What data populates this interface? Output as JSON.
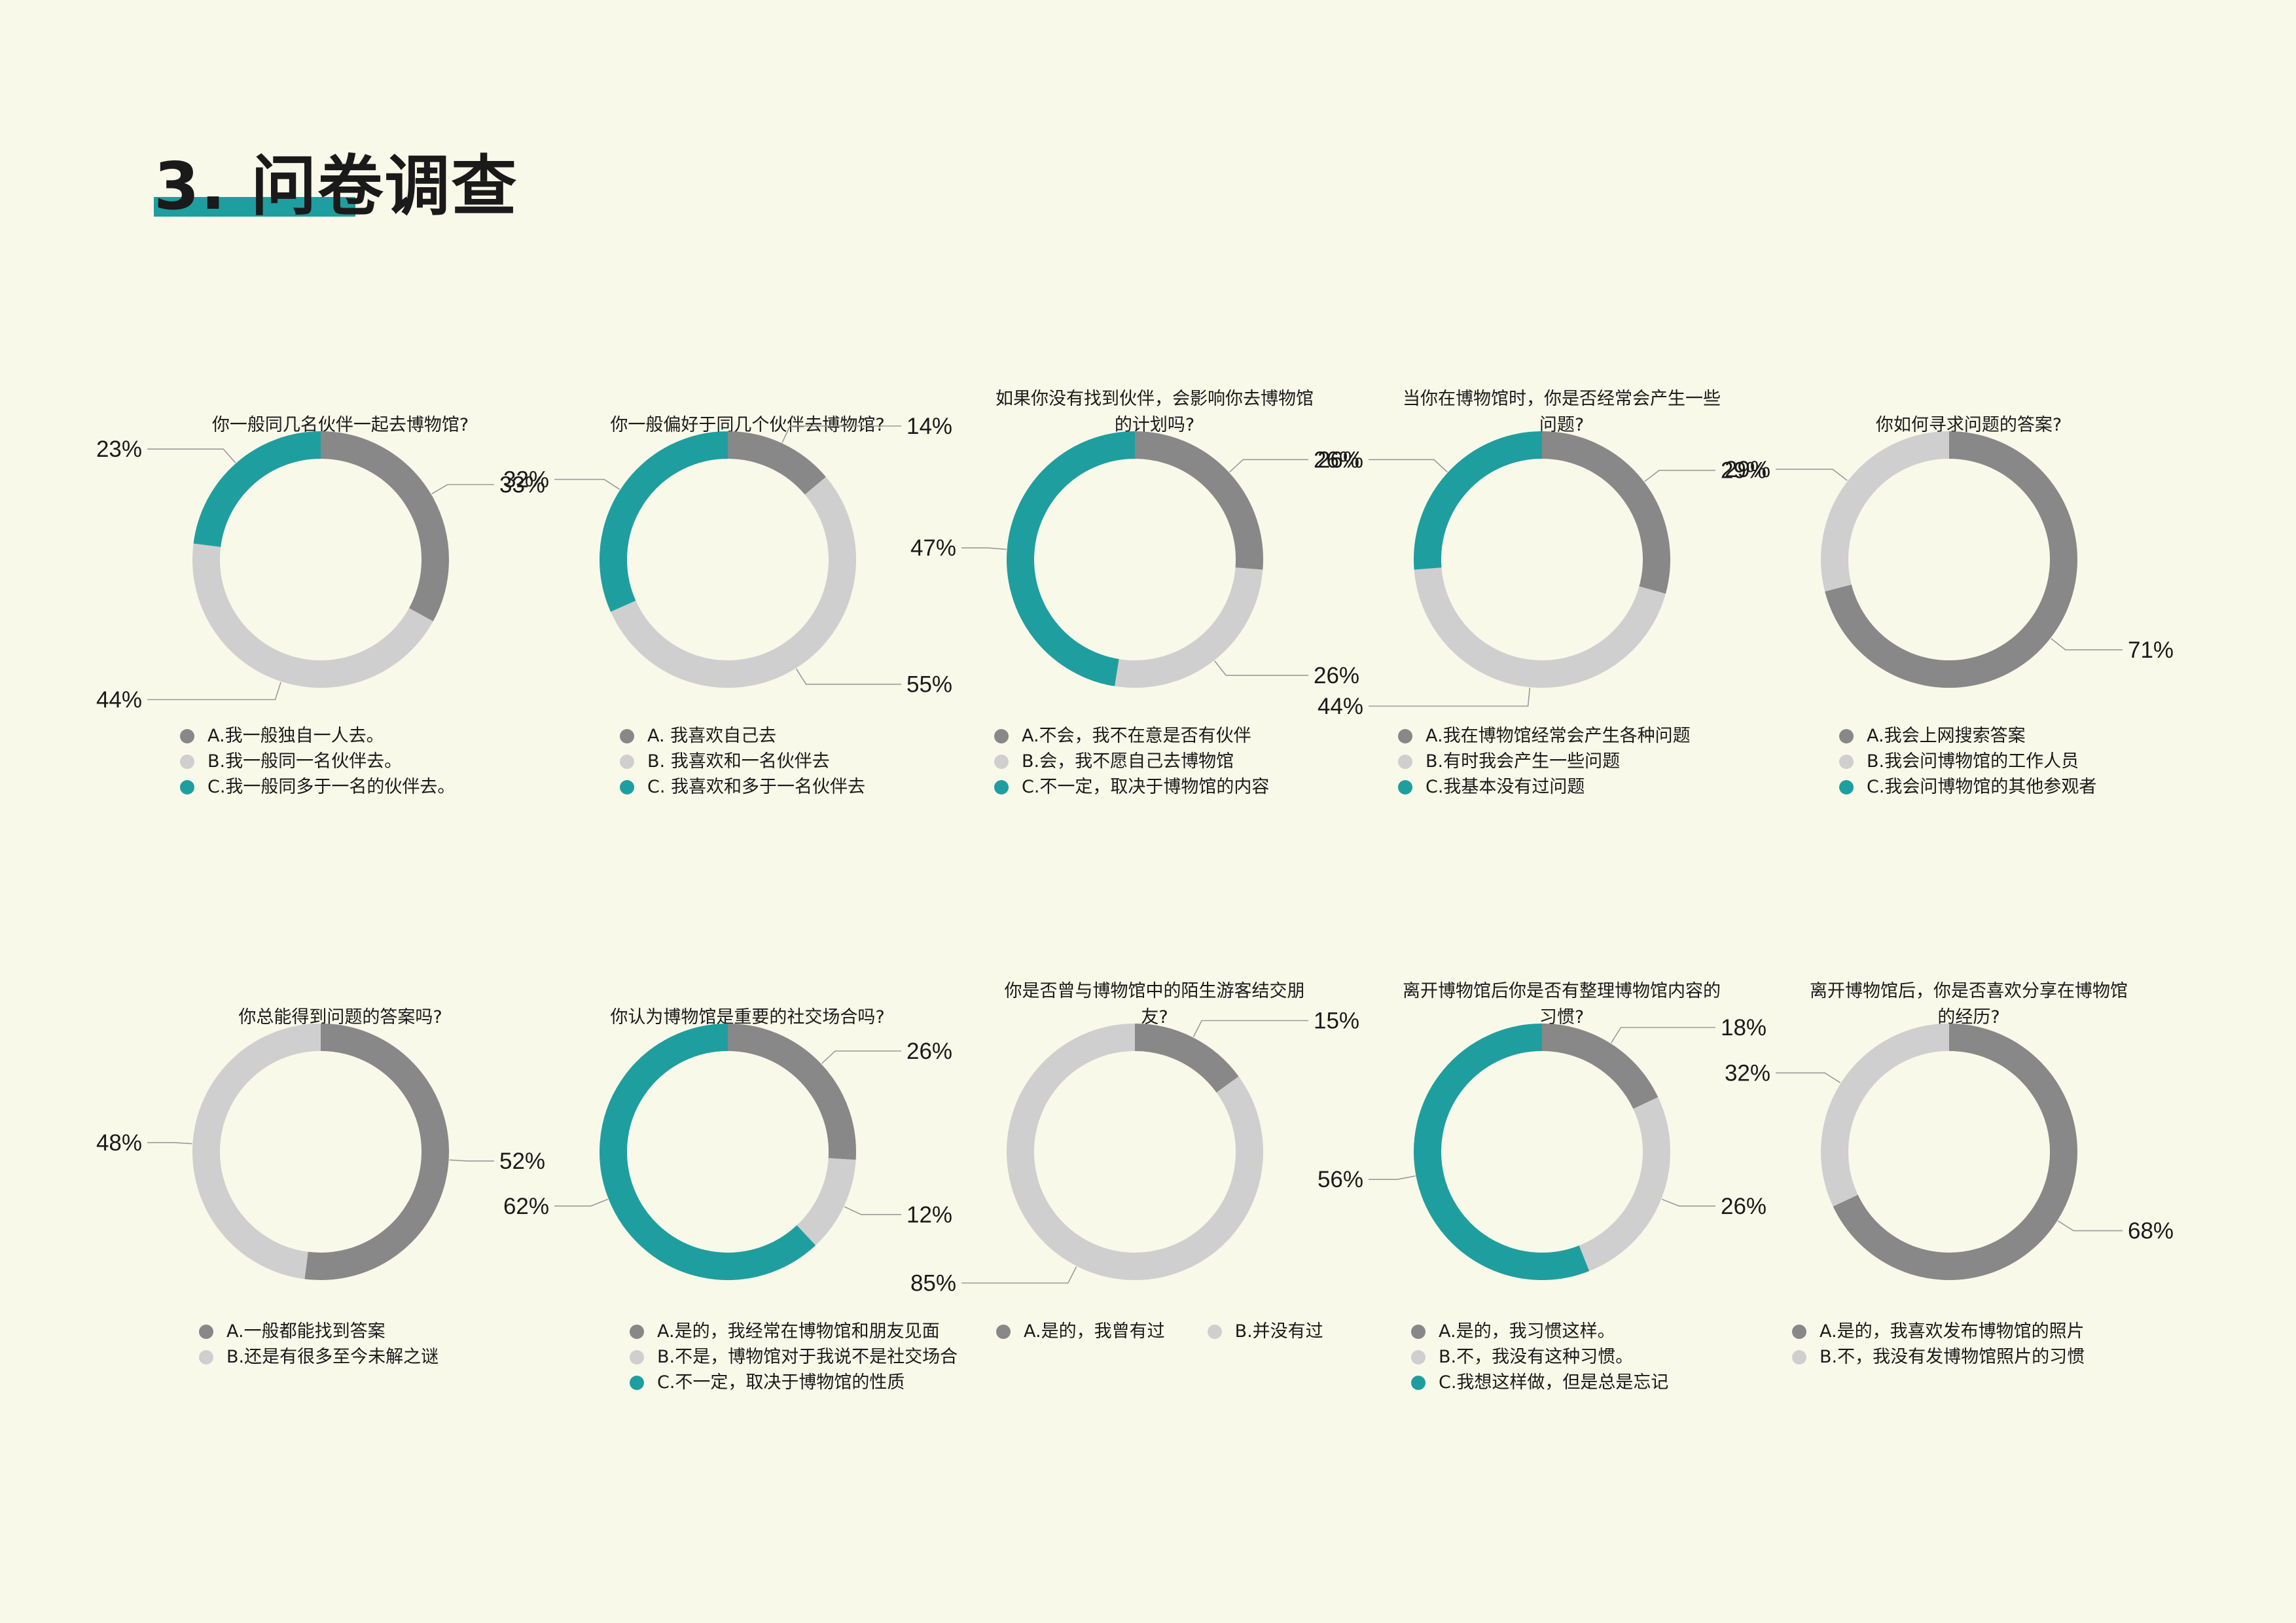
{
  "header": {
    "title": "3. 问卷调查"
  },
  "colors": {
    "dark_gray": "#888888",
    "light_gray": "#cfcfcf",
    "teal": "#1f9e9f",
    "accent": "#1f9e9f",
    "background": "#f9f9ea"
  },
  "chart_data": [
    {
      "type": "donut",
      "question": "你一般同几名伙伴一起去博物馆?",
      "slices": [
        {
          "label": "A.我一般独自一人去。",
          "value": 33,
          "display": "33%",
          "color": "#888888"
        },
        {
          "label": "B.我一般同一名伙伴去。",
          "value": 44,
          "display": "44%",
          "color": "#cfcfcf"
        },
        {
          "label": "C.我一般同多于一名的伙伴去。",
          "value": 23,
          "display": "23%",
          "color": "#1f9e9f"
        }
      ]
    },
    {
      "type": "donut",
      "question": "你一般偏好于同几个伙伴去博物馆?",
      "slices": [
        {
          "label": "A. 我喜欢自己去",
          "value": 14,
          "display": "14%",
          "color": "#888888"
        },
        {
          "label": "B. 我喜欢和一名伙伴去",
          "value": 55,
          "display": "55%",
          "color": "#cfcfcf"
        },
        {
          "label": "C. 我喜欢和多于一名伙伴去",
          "value": 32,
          "display": "32%",
          "color": "#1f9e9f"
        }
      ]
    },
    {
      "type": "donut",
      "question": "如果你没有找到伙伴，会影响你去博物馆的计划吗?",
      "slices": [
        {
          "label": "A.不会，我不在意是否有伙伴",
          "value": 26,
          "display": "26%",
          "color": "#888888"
        },
        {
          "label": "B.会，我不愿自己去博物馆",
          "value": 26,
          "display": "26%",
          "color": "#cfcfcf"
        },
        {
          "label": "C.不一定，取决于博物馆的内容",
          "value": 47,
          "display": "47%",
          "color": "#1f9e9f"
        }
      ]
    },
    {
      "type": "donut",
      "question": "当你在博物馆时，你是否经常会产生一些问题?",
      "slices": [
        {
          "label": "A.我在博物馆经常会产生各种问题",
          "value": 29,
          "display": "29%",
          "color": "#888888"
        },
        {
          "label": "B.有时我会产生一些问题",
          "value": 44,
          "display": "44%",
          "color": "#cfcfcf"
        },
        {
          "label": "C.我基本没有过问题",
          "value": 26,
          "display": "26%",
          "color": "#1f9e9f"
        }
      ]
    },
    {
      "type": "donut",
      "question": "你如何寻求问题的答案?",
      "slices": [
        {
          "label": "A.我会上网搜索答案",
          "value": 71,
          "display": "71%",
          "color": "#888888"
        },
        {
          "label": "B.我会问博物馆的工作人员",
          "value": 29,
          "display": "29%",
          "color": "#cfcfcf"
        },
        {
          "label": "C.我会问博物馆的其他参观者",
          "value": 0,
          "display": "",
          "color": "#1f9e9f"
        }
      ]
    },
    {
      "type": "donut",
      "question": "你总能得到问题的答案吗?",
      "slices": [
        {
          "label": "A.一般都能找到答案",
          "value": 52,
          "display": "52%",
          "color": "#888888"
        },
        {
          "label": "B.还是有很多至今未解之谜",
          "value": 48,
          "display": "48%",
          "color": "#cfcfcf"
        }
      ]
    },
    {
      "type": "donut",
      "question": "你认为博物馆是重要的社交场合吗?",
      "slices": [
        {
          "label": "A.是的，我经常在博物馆和朋友见面",
          "value": 26,
          "display": "26%",
          "color": "#888888"
        },
        {
          "label": "B.不是，博物馆对于我说不是社交场合",
          "value": 12,
          "display": "12%",
          "color": "#cfcfcf"
        },
        {
          "label": "C.不一定，取决于博物馆的性质",
          "value": 62,
          "display": "62%",
          "color": "#1f9e9f"
        }
      ]
    },
    {
      "type": "donut",
      "question": "你是否曾与博物馆中的陌生游客结交朋友?",
      "slices": [
        {
          "label": "A.是的，我曾有过",
          "value": 15,
          "display": "15%",
          "color": "#888888"
        },
        {
          "label": "B.并没有过",
          "value": 85,
          "display": "85%",
          "color": "#cfcfcf"
        }
      ]
    },
    {
      "type": "donut",
      "question": "离开博物馆后你是否有整理博物馆内容的习惯?",
      "slices": [
        {
          "label": "A.是的，我习惯这样。",
          "value": 18,
          "display": "18%",
          "color": "#888888"
        },
        {
          "label": "B.不，我没有这种习惯。",
          "value": 26,
          "display": "26%",
          "color": "#cfcfcf"
        },
        {
          "label": "C.我想这样做，但是总是忘记",
          "value": 56,
          "display": "56%",
          "color": "#1f9e9f"
        }
      ]
    },
    {
      "type": "donut",
      "question": "离开博物馆后，你是否喜欢分享在博物馆的经历?",
      "slices": [
        {
          "label": "A.是的，我喜欢发布博物馆的照片",
          "value": 68,
          "display": "68%",
          "color": "#888888"
        },
        {
          "label": "B.不，我没有发博物馆照片的习惯",
          "value": 32,
          "display": "32%",
          "color": "#cfcfcf"
        }
      ]
    }
  ]
}
